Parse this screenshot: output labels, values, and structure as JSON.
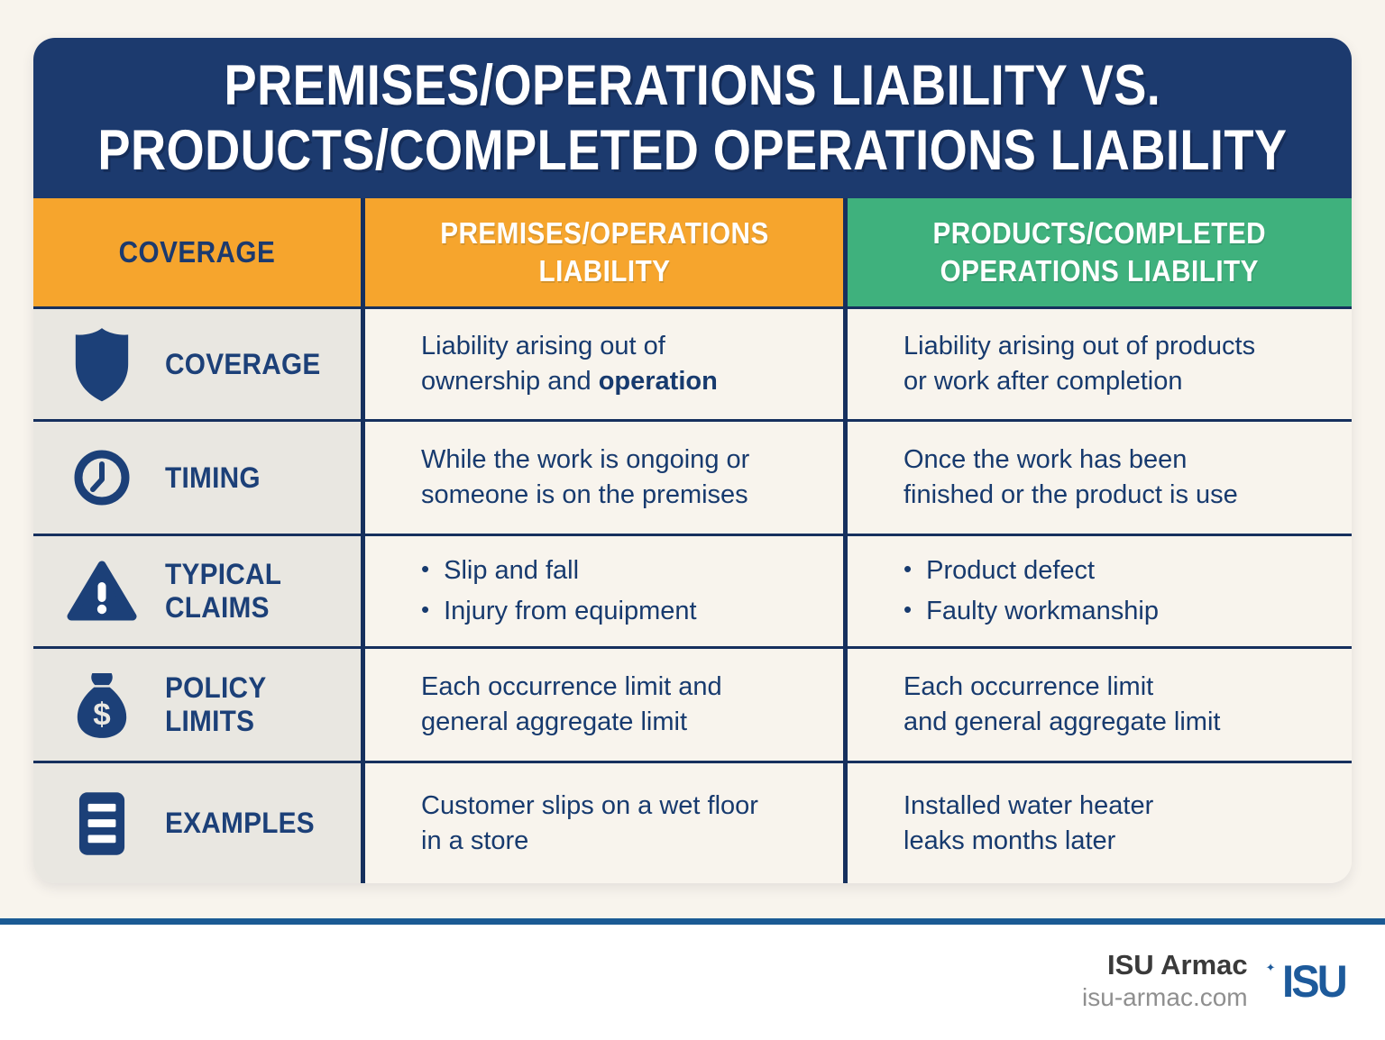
{
  "title": {
    "line1": "PREMISES/OPERATIONS LIABILITY VS.",
    "line2": "PRODUCTS/COMPLETED OPERATIONS LIABILITY"
  },
  "header": {
    "col1": "COVERAGE",
    "col2_line1": "PREMISES/OPERATIONS",
    "col2_line2": "LIABILITY",
    "col3_line1": "PRODUCTS/COMPLETED",
    "col3_line2": "OPERATIONS LIABILITY"
  },
  "bullet_char": "•",
  "rows": [
    {
      "icon": "shield-icon",
      "label": "COVERAGE",
      "premises": {
        "lines": [
          [
            "Liability arising out of"
          ],
          [
            "ownership and ",
            {
              "b": "operation"
            }
          ]
        ]
      },
      "products": {
        "lines": [
          [
            "Liability arising out of products"
          ],
          [
            "or work after completion"
          ]
        ]
      }
    },
    {
      "icon": "clock-icon",
      "label": "TIMING",
      "premises": {
        "lines": [
          [
            "While the work is ongoing or"
          ],
          [
            "someone is on the premises"
          ]
        ]
      },
      "products": {
        "lines": [
          [
            "Once the work has been"
          ],
          [
            "finished or the product is use"
          ]
        ]
      }
    },
    {
      "icon": "warning-icon",
      "label": "TYPICAL CLAIMS",
      "premises": {
        "bullets": [
          "Slip and fall",
          "Injury from equipment"
        ]
      },
      "products": {
        "bullets": [
          "Product defect",
          "Faulty workmanship"
        ]
      }
    },
    {
      "icon": "money-bag-icon",
      "label": "POLICY LIMITS",
      "premises": {
        "lines": [
          [
            "Each occurrence limit and"
          ],
          [
            "general aggregate limit"
          ]
        ]
      },
      "products": {
        "lines": [
          [
            "Each occurrence limit"
          ],
          [
            "and general aggregate limit"
          ]
        ]
      }
    },
    {
      "icon": "document-icon",
      "label": "EXAMPLES",
      "premises": {
        "lines": [
          [
            "Customer slips on a wet floor"
          ],
          [
            "in a store"
          ]
        ]
      },
      "products": {
        "lines": [
          [
            "Installed water heater"
          ],
          [
            "leaks months later"
          ]
        ]
      }
    }
  ],
  "footer": {
    "brand": "ISU Armac",
    "website": "isu-armac.com",
    "logo_text": "ISU",
    "logo_star": "✦"
  },
  "colors": {
    "navy": "#1c3a6e",
    "orange": "#f6a52d",
    "green": "#3fb17d",
    "light_gray_column": "#e9e7e1",
    "cream_background": "#f8f4ed",
    "footer_rule_blue": "#1a5a94",
    "logo_blue": "#1d5a9b"
  }
}
